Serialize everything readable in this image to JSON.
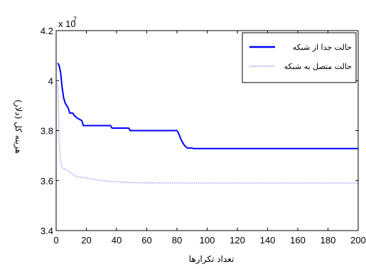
{
  "chart_data": {
    "type": "line",
    "xlabel": "تعداد تکرارها",
    "ylabel": "هزینه کل (دلار)",
    "ylim": [
      3.4,
      4.2
    ],
    "xlim": [
      0,
      200
    ],
    "y_exponent_label": "x 10",
    "y_exponent_power": "7",
    "x_ticks": [
      "0",
      "20",
      "40",
      "60",
      "80",
      "100",
      "120",
      "140",
      "160",
      "180",
      "200"
    ],
    "y_ticks": [
      "3.4",
      "3.6",
      "3.8",
      "4",
      "4.2"
    ],
    "grid": false,
    "legend_position": "top-right",
    "series": [
      {
        "name": "حالت جدا از شبکه",
        "color": "#0000ff",
        "style": "solid",
        "points": [
          [
            1,
            4.07
          ],
          [
            2,
            4.06
          ],
          [
            3,
            4.03
          ],
          [
            4,
            3.97
          ],
          [
            5,
            3.93
          ],
          [
            6,
            3.91
          ],
          [
            7,
            3.9
          ],
          [
            8,
            3.89
          ],
          [
            9,
            3.87
          ],
          [
            11,
            3.87
          ],
          [
            12,
            3.86
          ],
          [
            14,
            3.85
          ],
          [
            17,
            3.84
          ],
          [
            18,
            3.82
          ],
          [
            36,
            3.82
          ],
          [
            37,
            3.81
          ],
          [
            48,
            3.81
          ],
          [
            49,
            3.8
          ],
          [
            80,
            3.8
          ],
          [
            81,
            3.79
          ],
          [
            83,
            3.76
          ],
          [
            85,
            3.74
          ],
          [
            87,
            3.73
          ],
          [
            90,
            3.73
          ],
          [
            91,
            3.728
          ],
          [
            200,
            3.728
          ]
        ]
      },
      {
        "name": "حالت متصل به شبکه",
        "color": "#9999ff",
        "style": "dotted",
        "points": [
          [
            1,
            3.99
          ],
          [
            1.5,
            3.9
          ],
          [
            2,
            3.75
          ],
          [
            3,
            3.68
          ],
          [
            4,
            3.65
          ],
          [
            6,
            3.645
          ],
          [
            8,
            3.64
          ],
          [
            10,
            3.63
          ],
          [
            12,
            3.62
          ],
          [
            15,
            3.615
          ],
          [
            20,
            3.61
          ],
          [
            25,
            3.605
          ],
          [
            30,
            3.6
          ],
          [
            40,
            3.595
          ],
          [
            50,
            3.592
          ],
          [
            60,
            3.591
          ],
          [
            100,
            3.59
          ],
          [
            200,
            3.59
          ]
        ]
      }
    ]
  }
}
